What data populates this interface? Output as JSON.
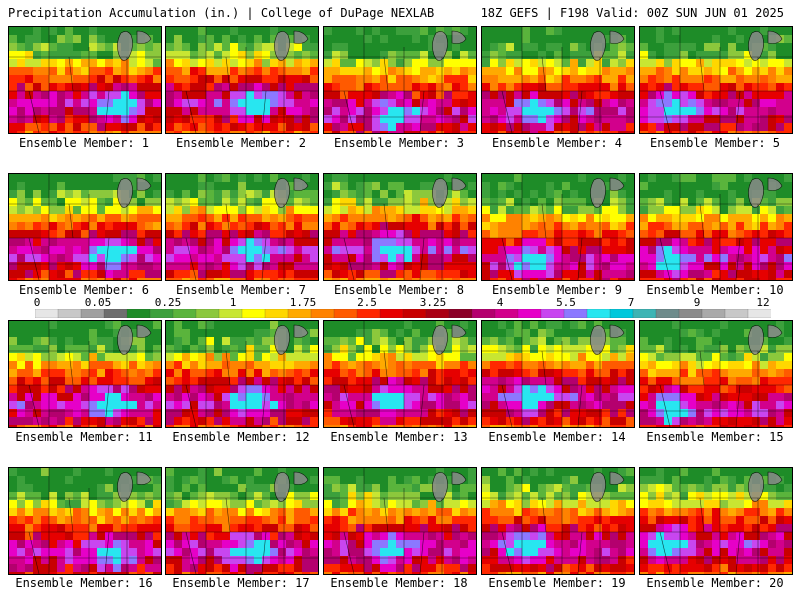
{
  "header": {
    "left": "Precipitation Accumulation (in.) | College of DuPage NEXLAB",
    "right": "18Z GEFS | F198 Valid: 00Z SUN JUN 01 2025"
  },
  "members": [
    {
      "label": "Ensemble Member: 1"
    },
    {
      "label": "Ensemble Member: 2"
    },
    {
      "label": "Ensemble Member: 3"
    },
    {
      "label": "Ensemble Member: 4"
    },
    {
      "label": "Ensemble Member: 5"
    },
    {
      "label": "Ensemble Member: 6"
    },
    {
      "label": "Ensemble Member: 7"
    },
    {
      "label": "Ensemble Member: 8"
    },
    {
      "label": "Ensemble Member: 9"
    },
    {
      "label": "Ensemble Member: 10"
    },
    {
      "label": "Ensemble Member: 11"
    },
    {
      "label": "Ensemble Member: 12"
    },
    {
      "label": "Ensemble Member: 13"
    },
    {
      "label": "Ensemble Member: 14"
    },
    {
      "label": "Ensemble Member: 15"
    },
    {
      "label": "Ensemble Member: 16"
    },
    {
      "label": "Ensemble Member: 17"
    },
    {
      "label": "Ensemble Member: 18"
    },
    {
      "label": "Ensemble Member: 19"
    },
    {
      "label": "Ensemble Member: 20"
    }
  ],
  "colorbar": {
    "tick_labels": [
      "0",
      "0.05",
      "0.25",
      "1",
      "1.75",
      "2.5",
      "3.25",
      "4",
      "5.5",
      "7",
      "9",
      "12"
    ],
    "colors": [
      "#e6e6e6",
      "#c8c8c8",
      "#a0a0a0",
      "#6e6e6e",
      "#1e8c28",
      "#3ca03c",
      "#5ab43c",
      "#8cc83c",
      "#c8e632",
      "#ffff00",
      "#ffd700",
      "#ffaa00",
      "#ff8200",
      "#ff5a00",
      "#ff2800",
      "#e60000",
      "#c80000",
      "#aa0014",
      "#8c0028",
      "#b4006e",
      "#d2008c",
      "#e600c8",
      "#c846f0",
      "#8c78ff",
      "#28e6f0",
      "#00c8dc",
      "#3cb4b4",
      "#6e8c8c",
      "#8c8c8c",
      "#aaaaaa",
      "#c8c8c8",
      "#e6e6e6"
    ]
  }
}
